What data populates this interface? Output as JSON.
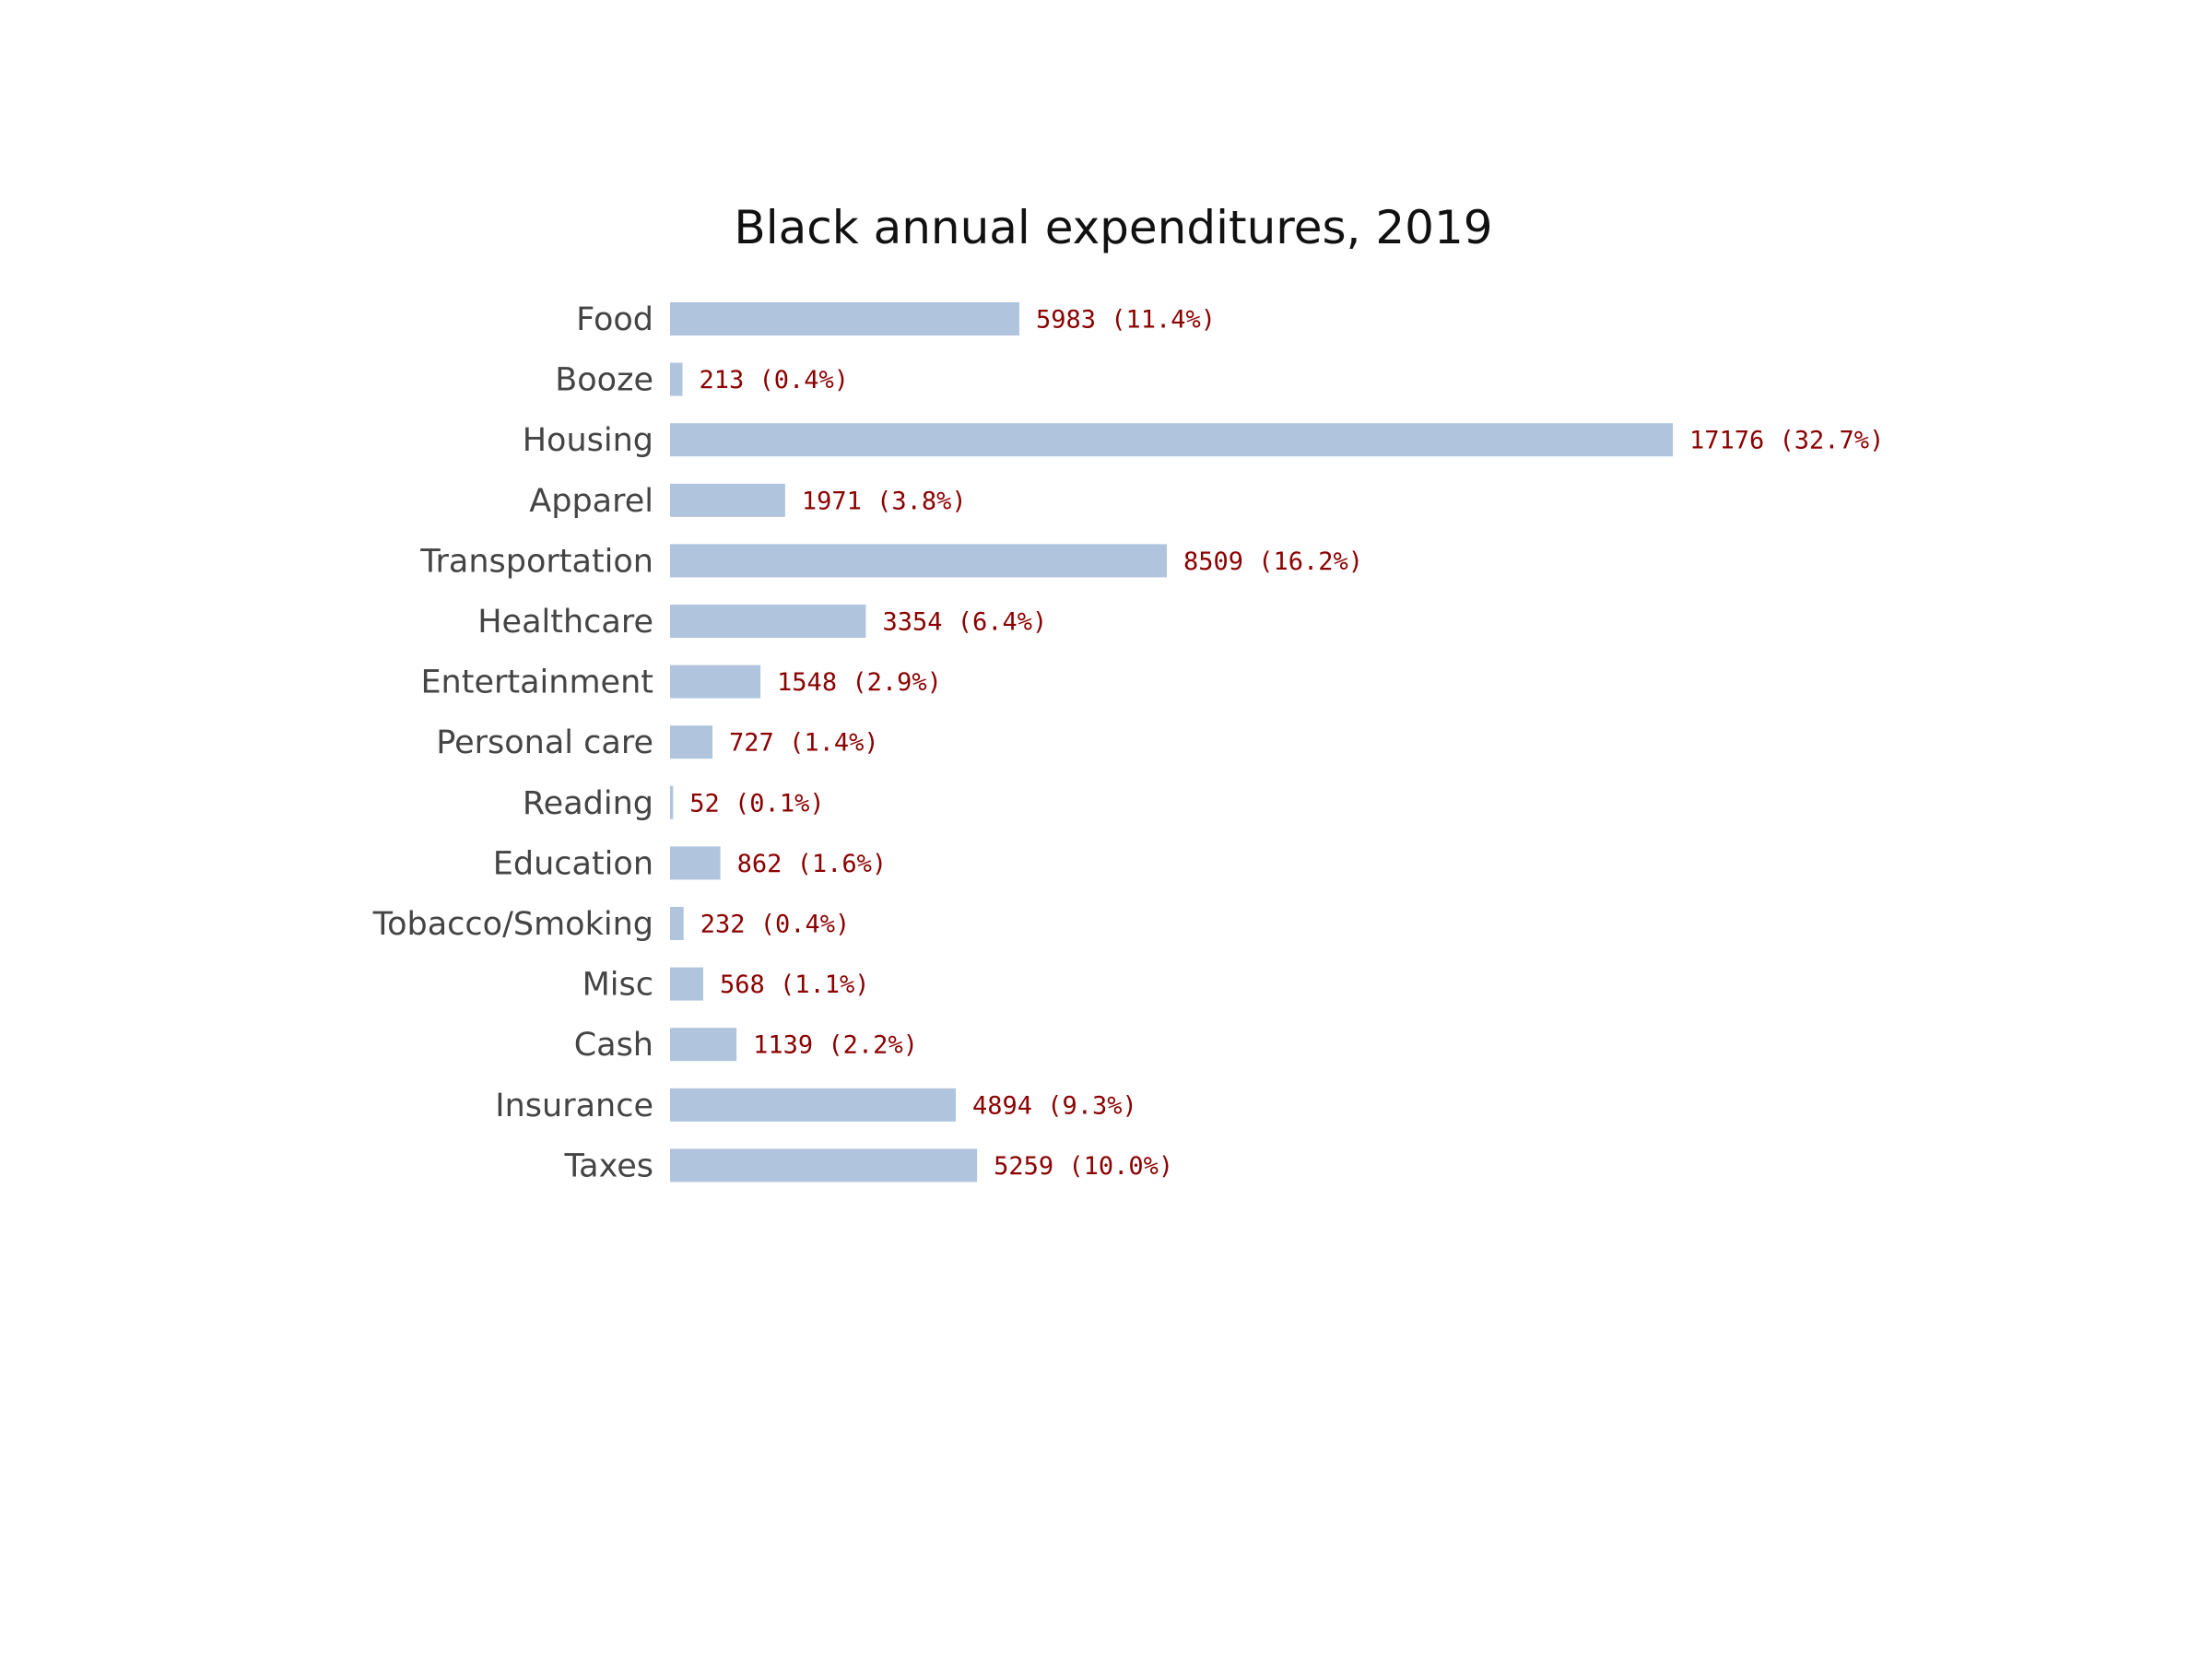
{
  "chart_data": {
    "type": "bar",
    "orientation": "horizontal",
    "title": "Black annual expenditures, 2019",
    "xlabel": "",
    "ylabel": "",
    "grid": false,
    "categories": [
      "Food",
      "Booze",
      "Housing",
      "Apparel",
      "Transportation",
      "Healthcare",
      "Entertainment",
      "Personal care",
      "Reading",
      "Education",
      "Tobacco/Smoking",
      "Misc",
      "Cash",
      "Insurance",
      "Taxes"
    ],
    "values": [
      5983,
      213,
      17176,
      1971,
      8509,
      3354,
      1548,
      727,
      52,
      862,
      232,
      568,
      1139,
      4894,
      5259
    ],
    "data_labels": [
      "5983 (11.4%)",
      "213 (0.4%)",
      "17176 (32.7%)",
      "1971 (3.8%)",
      "8509 (16.2%)",
      "3354 (6.4%)",
      "1548 (2.9%)",
      "727 (1.4%)",
      "52 (0.1%)",
      "862 (1.6%)",
      "232 (0.4%)",
      "568 (1.1%)",
      "1139 (2.2%)",
      "4894 (9.3%)",
      "5259 (10.0%)"
    ],
    "colors": {
      "bar": "#b0c4de",
      "value_label": "#8b0000",
      "category_label": "#444444",
      "title": "#111111"
    }
  }
}
